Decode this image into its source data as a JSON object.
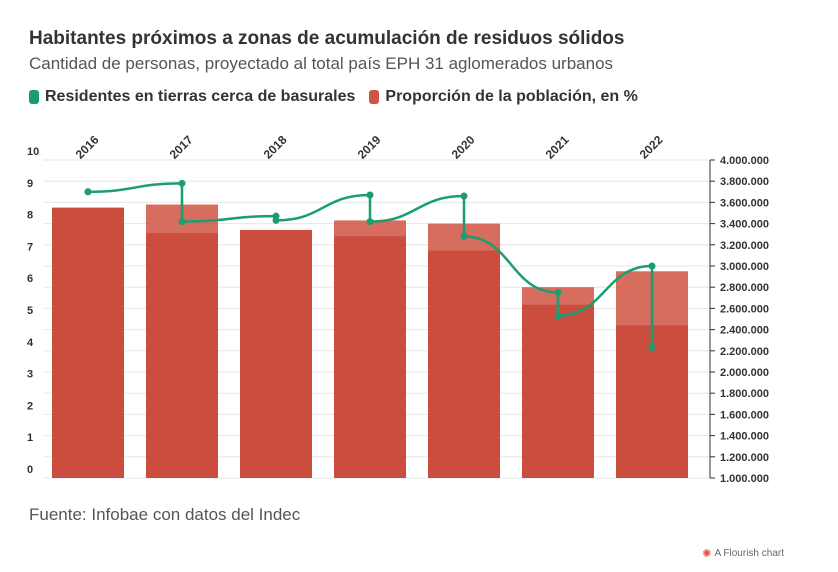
{
  "title": "Habitantes próximos a zonas de acumulación de residuos sólidos",
  "subtitle": "Cantidad de personas, proyectado al total país EPH 31 aglomerados urbanos",
  "legend": [
    {
      "label": "Residentes en tierras cerca de basurales",
      "color": "#1a9e6e"
    },
    {
      "label": "Proporción de la población, en %",
      "color": "#cf5443"
    }
  ],
  "footer": "Fuente: Infobae con datos del Indec",
  "credit": "A Flourish chart",
  "chart_data": {
    "type": "bar",
    "categories": [
      "2016",
      "2017",
      "2018",
      "2019",
      "2020",
      "2021",
      "2022"
    ],
    "y_left": {
      "min": 0,
      "max": 10,
      "ticks": [
        "0",
        "1",
        "2",
        "3",
        "4",
        "5",
        "6",
        "7",
        "8",
        "9",
        "10"
      ]
    },
    "y_right": {
      "min": 1000000,
      "max": 4000000,
      "ticks": [
        "1.000.000",
        "1.200.000",
        "1.400.000",
        "1.600.000",
        "1.800.000",
        "2.000.000",
        "2.200.000",
        "2.400.000",
        "2.600.000",
        "2.800.000",
        "3.000.000",
        "3.200.000",
        "3.400.000",
        "3.600.000",
        "3.800.000",
        "4.000.000"
      ]
    },
    "series": [
      {
        "name": "Proporción de la población, en %",
        "axis": "left",
        "semesters": [
          [
            8.5,
            8.5
          ],
          [
            8.6,
            7.7
          ],
          [
            7.8,
            7.8
          ],
          [
            8.1,
            7.6
          ],
          [
            8.0,
            7.15
          ],
          [
            6.0,
            5.45
          ],
          [
            6.5,
            4.8
          ]
        ]
      },
      {
        "name": "Residentes en tierras cerca de basurales",
        "axis": "right",
        "semesters": [
          [
            3700000,
            3700000
          ],
          [
            3780000,
            3420000
          ],
          [
            3470000,
            3430000
          ],
          [
            3670000,
            3420000
          ],
          [
            3660000,
            3280000
          ],
          [
            2750000,
            2530000
          ],
          [
            3000000,
            2230000
          ]
        ]
      }
    ],
    "grid": true,
    "legend_position": "top-left"
  }
}
